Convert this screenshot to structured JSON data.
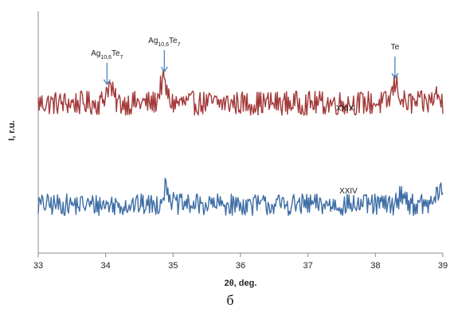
{
  "chart_data": {
    "type": "line",
    "title": "",
    "xlabel": "2θ, deg.",
    "ylabel": "I, r.u.",
    "xlim": [
      33,
      39
    ],
    "x_ticks": [
      "33",
      "34",
      "35",
      "36",
      "37",
      "38",
      "39"
    ],
    "grid": false,
    "legend": "none",
    "caption": "б",
    "series": [
      {
        "name": "XXIX",
        "color": "#a33a3a",
        "baseline": 0.62,
        "amplitude": 0.1,
        "peaks": [
          {
            "x": 34.05,
            "height": 0.45
          },
          {
            "x": 34.85,
            "height": 0.55
          },
          {
            "x": 38.3,
            "height": 0.5
          },
          {
            "x": 38.9,
            "height": 0.2
          }
        ]
      },
      {
        "name": "XXIV",
        "color": "#3e6ea5",
        "baseline": 0.2,
        "amplitude": 0.09,
        "peaks": [
          {
            "x": 34.9,
            "height": 0.45
          },
          {
            "x": 38.4,
            "height": 0.3
          },
          {
            "x": 38.95,
            "height": 0.35
          }
        ]
      }
    ],
    "annotations": [
      {
        "base": "Ag",
        "sub": "10,6",
        "tail": "Te",
        "tail_sub": "7",
        "x": 34.02
      },
      {
        "base": "Ag",
        "sub": "10,6",
        "tail": "Te",
        "tail_sub": "7",
        "x": 34.87
      },
      {
        "base": "Te",
        "sub": "",
        "tail": "",
        "tail_sub": "",
        "x": 38.29
      }
    ],
    "series_labels": [
      {
        "text": "XXIX",
        "x": 37.55,
        "series": 0
      },
      {
        "text": "XXIV",
        "x": 37.6,
        "series": 1
      }
    ]
  }
}
